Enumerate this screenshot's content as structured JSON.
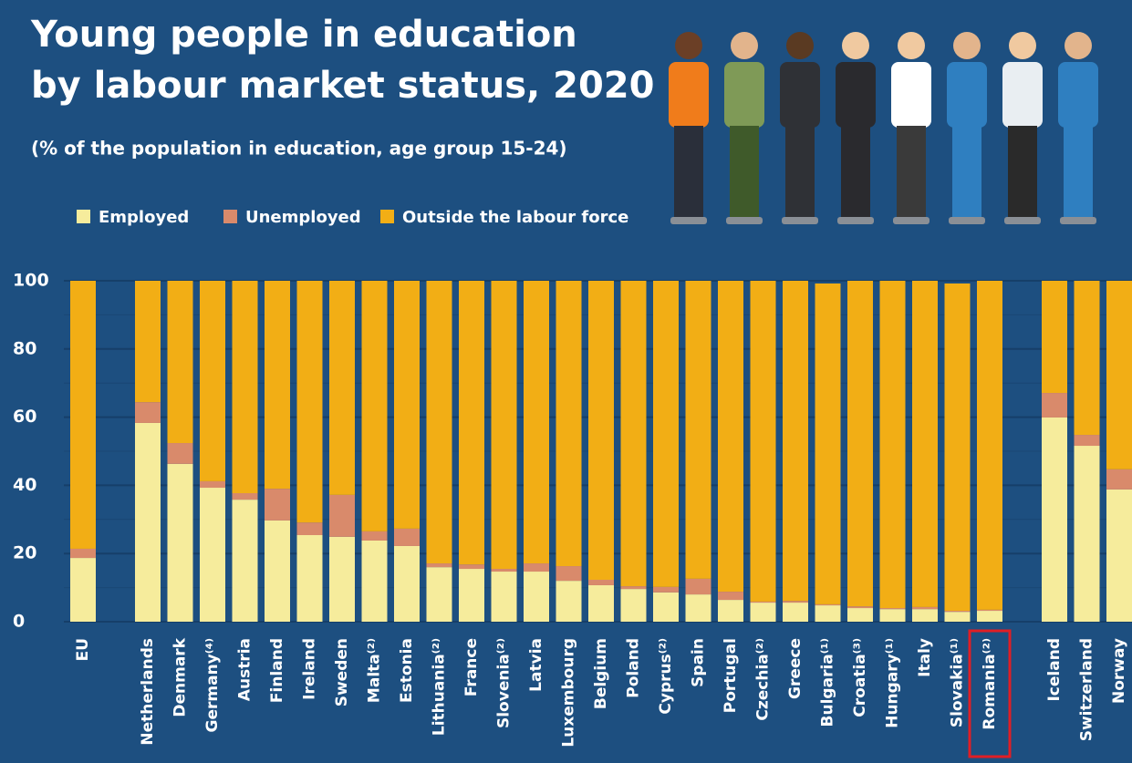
{
  "chart_data": {
    "type": "stacked_bar",
    "title": [
      "Young people in education",
      "by labour market status, 2020"
    ],
    "subtitle": "(% of the population in education, age group 15-24)",
    "categories": [
      "EU",
      "Netherlands",
      "Denmark",
      "Germany⁽⁴⁾",
      "Austria",
      "Finland",
      "Ireland",
      "Sweden",
      "Malta⁽²⁾",
      "Estonia",
      "Lithuania⁽²⁾",
      "France",
      "Slovenia⁽²⁾",
      "Latvia",
      "Luxembourg",
      "Belgium",
      "Poland",
      "Cyprus⁽²⁾",
      "Spain",
      "Portugal",
      "Czechia⁽²⁾",
      "Greece",
      "Bulgaria⁽¹⁾",
      "Croatia⁽³⁾",
      "Hungary⁽¹⁾",
      "Italy",
      "Slovakia⁽¹⁾",
      "Romania⁽²⁾",
      "Iceland",
      "Switzerland",
      "Norway"
    ],
    "series": [
      {
        "name": "Employed",
        "color": "#f6ec9c",
        "values": [
          18.7,
          58.3,
          46.3,
          39.3,
          35.8,
          29.7,
          25.4,
          24.9,
          23.8,
          22.2,
          16.0,
          15.5,
          14.7,
          14.7,
          12.0,
          10.7,
          9.6,
          8.6,
          8.0,
          6.4,
          5.6,
          5.6,
          4.8,
          4.0,
          3.7,
          3.7,
          2.9,
          3.2,
          59.9,
          51.6,
          38.8
        ]
      },
      {
        "name": "Unemployed",
        "color": "#d98a6b",
        "values": [
          2.7,
          6.1,
          6.1,
          1.9,
          1.9,
          9.3,
          3.7,
          12.3,
          2.7,
          5.1,
          1.1,
          1.3,
          0.8,
          2.4,
          4.3,
          1.6,
          0.8,
          1.6,
          4.6,
          2.4,
          0.3,
          0.5,
          0.3,
          0.5,
          0.3,
          0.6,
          0.3,
          0.3,
          7.2,
          3.2,
          5.9
        ]
      },
      {
        "name": "Outside the labour force",
        "color": "#f2ae15",
        "values": [
          78.6,
          35.6,
          47.6,
          58.8,
          62.3,
          61.0,
          70.9,
          62.8,
          73.5,
          72.7,
          82.9,
          83.2,
          84.5,
          82.9,
          83.7,
          87.7,
          89.6,
          89.8,
          87.4,
          91.2,
          94.1,
          93.9,
          94.1,
          95.5,
          96.0,
          95.7,
          96.0,
          96.5,
          32.9,
          45.2,
          55.3
        ]
      }
    ],
    "ylim": [
      0,
      100
    ],
    "yticks": [
      0,
      20,
      40,
      60,
      80,
      100
    ],
    "grid": true
  }
}
